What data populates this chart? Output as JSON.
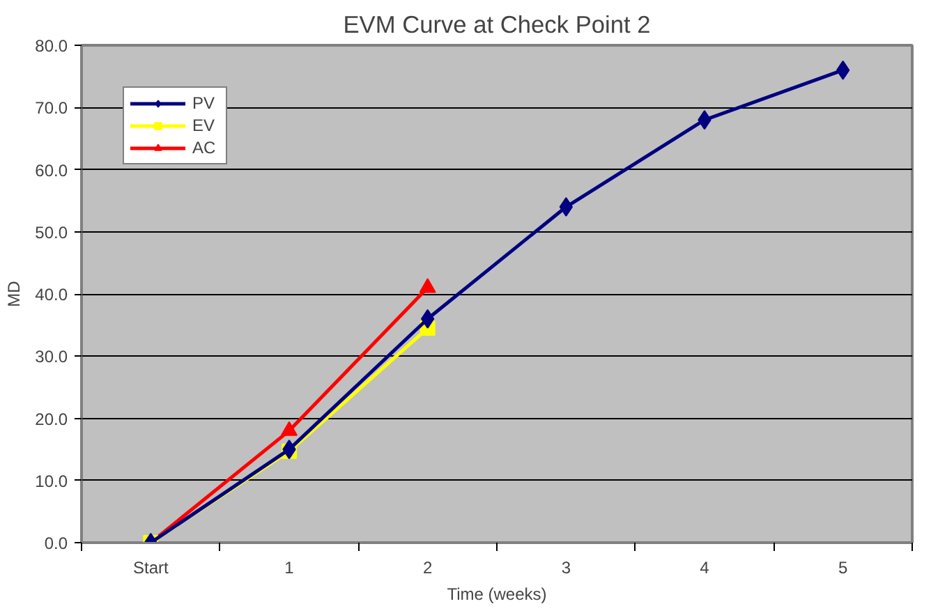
{
  "chart_data": {
    "type": "line",
    "title": "EVM Curve at Check Point 2",
    "xlabel": "Time (weeks)",
    "ylabel": "MD",
    "categories": [
      "Start",
      "1",
      "2",
      "3",
      "4",
      "5"
    ],
    "series": [
      {
        "name": "PV",
        "color": "#000080",
        "marker": "diamond",
        "values": [
          0,
          15,
          36,
          54,
          68,
          76
        ]
      },
      {
        "name": "EV",
        "color": "#ffff00",
        "marker": "square",
        "values": [
          0,
          14.7,
          34.5,
          null,
          null,
          null
        ]
      },
      {
        "name": "AC",
        "color": "#ff0000",
        "marker": "triangle",
        "values": [
          0,
          18,
          41,
          null,
          null,
          null
        ]
      }
    ],
    "ylim": [
      0,
      80
    ],
    "yticks": [
      {
        "value": 0,
        "label": "0.0"
      },
      {
        "value": 10,
        "label": "10.0"
      },
      {
        "value": 20,
        "label": "20.0"
      },
      {
        "value": 30,
        "label": "30.0"
      },
      {
        "value": 40,
        "label": "40.0"
      },
      {
        "value": 50,
        "label": "50.0"
      },
      {
        "value": 60,
        "label": "60.0"
      },
      {
        "value": 70,
        "label": "70.0"
      },
      {
        "value": 80,
        "label": "80.0"
      }
    ],
    "grid": "y",
    "legend": "top left",
    "line_style": "solid"
  }
}
